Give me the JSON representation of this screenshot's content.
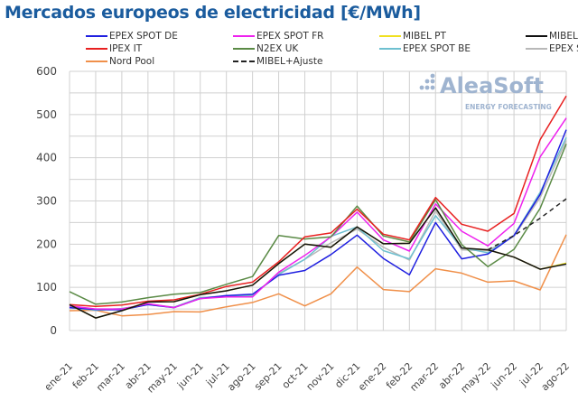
{
  "chart_data": {
    "type": "line",
    "title": "Mercados europeos de electricidad [€/MWh]",
    "watermark": "AleaSoft ENERGY FORECASTING",
    "ylim": [
      0,
      600
    ],
    "yticks": [
      0,
      100,
      200,
      300,
      400,
      500,
      600
    ],
    "grid": true,
    "legend_position": "top",
    "categories": [
      "ene-21",
      "feb-21",
      "mar-21",
      "abr-21",
      "may-21",
      "jun-21",
      "jul-21",
      "ago-21",
      "sep-21",
      "oct-21",
      "nov-21",
      "dic-21",
      "ene-22",
      "feb-22",
      "mar-22",
      "abr-22",
      "may-22",
      "jun-22",
      "jul-22",
      "ago-22"
    ],
    "series": [
      {
        "name": "EPEX SPOT DE",
        "color": "#2020e0",
        "values": [
          53,
          49,
          48,
          60,
          53,
          74,
          81,
          84,
          128,
          139,
          176,
          221,
          167,
          129,
          250,
          166,
          177,
          220,
          315,
          465
        ]
      },
      {
        "name": "EPEX SPOT FR",
        "color": "#ee22ee",
        "values": [
          57,
          50,
          50,
          62,
          53,
          74,
          78,
          78,
          135,
          174,
          217,
          274,
          210,
          184,
          293,
          230,
          196,
          248,
          402,
          492
        ]
      },
      {
        "name": "MIBEL PT",
        "color": "#f0e020",
        "values": [
          60,
          29,
          46,
          66,
          67,
          83,
          92,
          105,
          155,
          200,
          193,
          240,
          201,
          202,
          284,
          191,
          187,
          170,
          142,
          156
        ]
      },
      {
        "name": "MIBEL ES",
        "color": "#111111",
        "values": [
          60,
          29,
          46,
          66,
          67,
          83,
          92,
          105,
          155,
          200,
          193,
          240,
          201,
          202,
          284,
          191,
          187,
          170,
          142,
          154
        ]
      },
      {
        "name": "IPEX IT",
        "color": "#e82020",
        "values": [
          60,
          56,
          59,
          68,
          71,
          84,
          102,
          112,
          159,
          217,
          226,
          281,
          223,
          210,
          308,
          246,
          230,
          271,
          442,
          543
        ]
      },
      {
        "name": "N2EX UK",
        "color": "#5a8a45",
        "values": [
          90,
          61,
          66,
          76,
          84,
          88,
          107,
          125,
          220,
          212,
          217,
          288,
          219,
          205,
          303,
          199,
          148,
          188,
          283,
          432
        ]
      },
      {
        "name": "EPEX SPOT BE",
        "color": "#6ec0d0",
        "values": [
          55,
          47,
          51,
          60,
          54,
          76,
          79,
          82,
          130,
          165,
          218,
          240,
          185,
          166,
          266,
          192,
          180,
          220,
          320,
          447
        ]
      },
      {
        "name": "EPEX SPOT NL",
        "color": "#b8b8b8",
        "values": [
          53,
          47,
          49,
          61,
          54,
          76,
          80,
          80,
          132,
          165,
          203,
          235,
          193,
          163,
          277,
          187,
          185,
          218,
          308,
          440
        ]
      },
      {
        "name": "Nord Pool",
        "color": "#f0904a",
        "values": [
          46,
          47,
          34,
          37,
          44,
          43,
          55,
          65,
          85,
          57,
          85,
          147,
          95,
          90,
          143,
          133,
          112,
          115,
          94,
          222
        ]
      },
      {
        "name": "MIBEL+Ajuste",
        "color": "#222222",
        "dashed": true,
        "values": [
          null,
          null,
          null,
          null,
          null,
          null,
          null,
          null,
          null,
          null,
          null,
          null,
          null,
          null,
          null,
          null,
          187,
          220,
          260,
          305
        ]
      }
    ]
  }
}
